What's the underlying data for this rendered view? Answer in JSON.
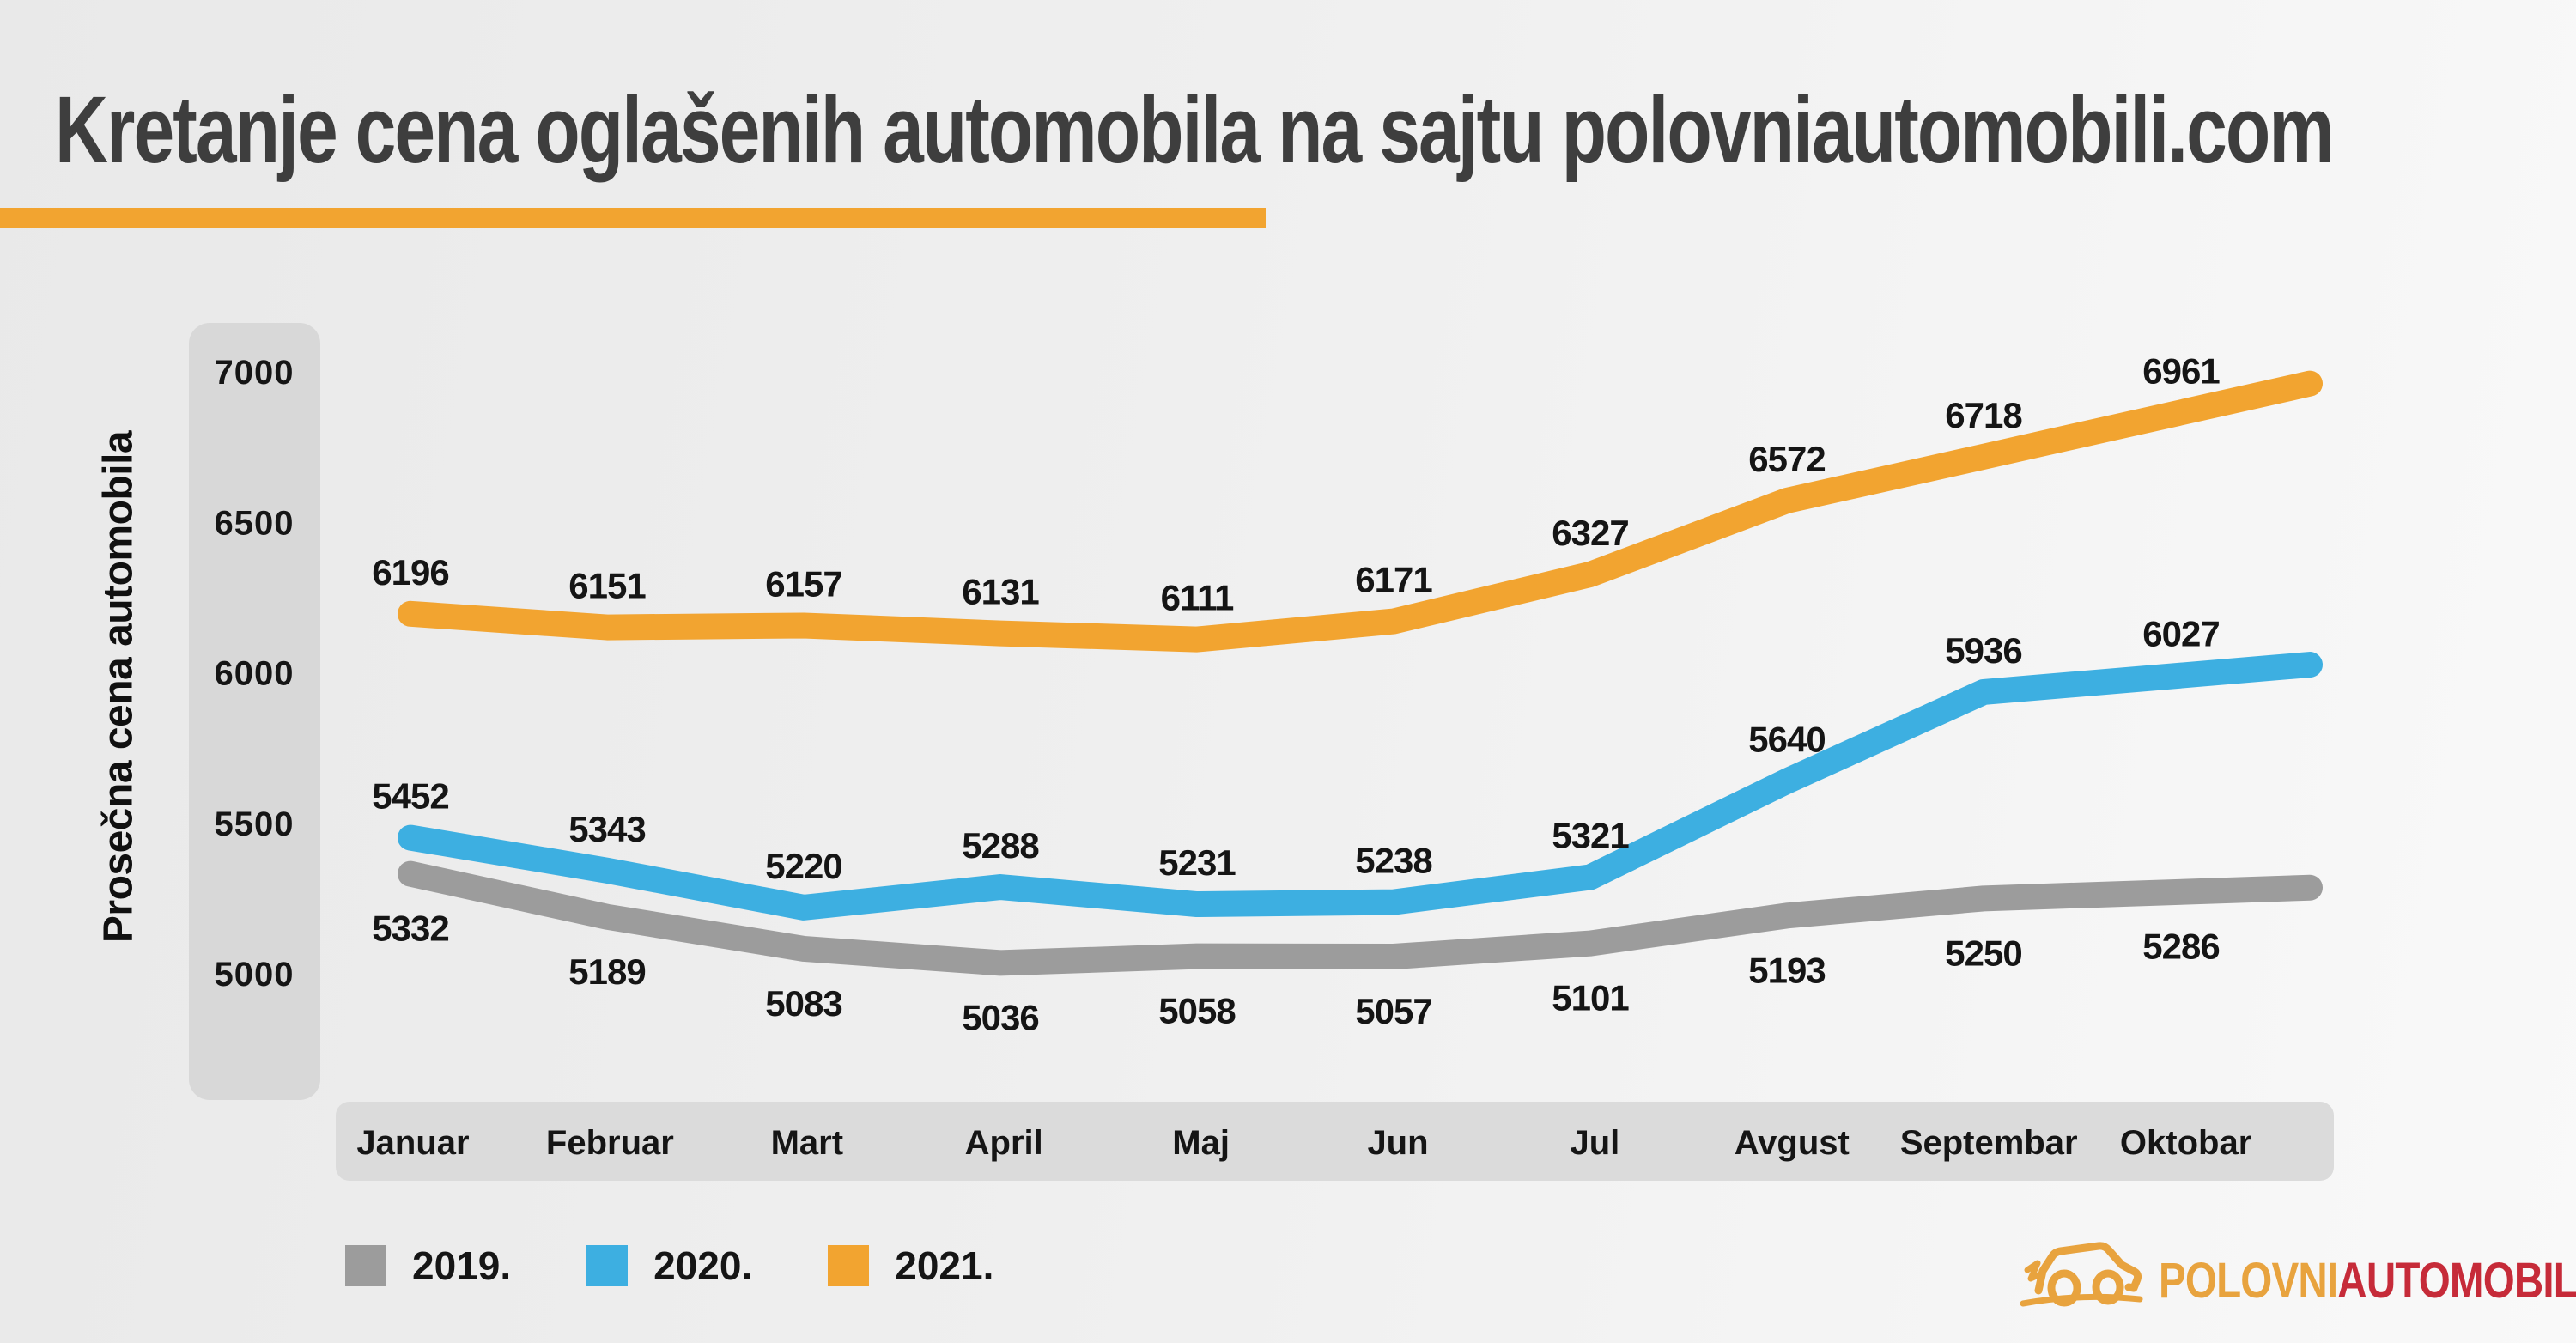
{
  "chart_data": {
    "type": "line",
    "title": "Kretanje cena oglašenih automobila na sajtu polovniautomobili.com",
    "ylabel": "Prosečna cena automobila",
    "xlabel": "",
    "categories": [
      "Januar",
      "Februar",
      "Mart",
      "April",
      "Maj",
      "Jun",
      "Jul",
      "Avgust",
      "Septembar",
      "Oktobar"
    ],
    "series": [
      {
        "name": "2019.",
        "color": "#9C9C9C",
        "label_position": "below",
        "values": [
          5332,
          5189,
          5083,
          5036,
          5058,
          5057,
          5101,
          5193,
          5250,
          5286
        ]
      },
      {
        "name": "2020.",
        "color": "#3DAFE1",
        "label_position": "above",
        "values": [
          5452,
          5343,
          5220,
          5288,
          5231,
          5238,
          5321,
          5640,
          5936,
          6027
        ]
      },
      {
        "name": "2021.",
        "color": "#F2A430",
        "label_position": "above",
        "values": [
          6196,
          6151,
          6157,
          6131,
          6111,
          6171,
          6327,
          6572,
          6718,
          6961
        ]
      }
    ],
    "yticks": [
      7000,
      6500,
      6000,
      5500,
      5000
    ],
    "ylim": [
      5000,
      7000
    ],
    "grid": false,
    "legend_position": "bottom-left"
  },
  "header": {
    "underline_color": "#F2A430",
    "title_color": "#3E3E3E"
  },
  "logo": {
    "part1": "POLOVNI",
    "part2": "AUTOMOBILI",
    "part1_color": "#E8A33E",
    "part2_color": "#C62B39"
  }
}
